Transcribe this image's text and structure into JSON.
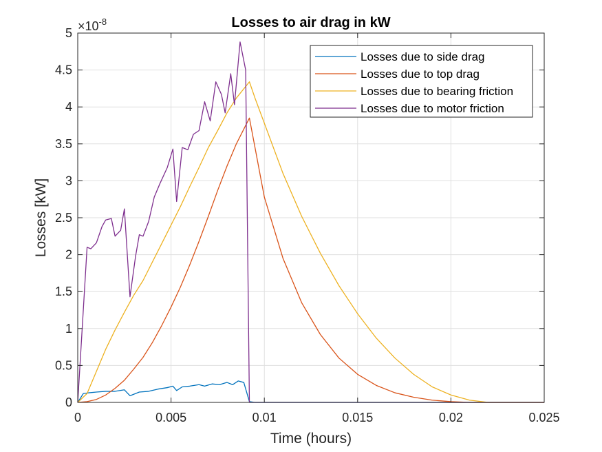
{
  "chart_data": {
    "type": "line",
    "title": "Losses to air drag in kW",
    "xlabel": "Time (hours)",
    "ylabel": "Losses [kW]",
    "y_exponent_label": "×10",
    "y_exponent_power": "-8",
    "xlim": [
      0,
      0.025
    ],
    "ylim": [
      0,
      5
    ],
    "x_ticks": [
      0,
      0.005,
      0.01,
      0.015,
      0.02,
      0.025
    ],
    "x_tick_labels": [
      "0",
      "0.005",
      "0.01",
      "0.015",
      "0.02",
      "0.025"
    ],
    "y_ticks": [
      0,
      0.5,
      1,
      1.5,
      2,
      2.5,
      3,
      3.5,
      4,
      4.5,
      5
    ],
    "y_tick_labels": [
      "0",
      "0.5",
      "1",
      "1.5",
      "2",
      "2.5",
      "3",
      "3.5",
      "4",
      "4.5",
      "5"
    ],
    "grid": true,
    "legend_position": "top-right",
    "series": [
      {
        "name": "Losses due to side drag",
        "color": "#0072BD",
        "points": [
          [
            0,
            0
          ],
          [
            0.0003,
            0.12
          ],
          [
            0.0006,
            0.13
          ],
          [
            0.001,
            0.14
          ],
          [
            0.0015,
            0.15
          ],
          [
            0.002,
            0.15
          ],
          [
            0.0025,
            0.17
          ],
          [
            0.0028,
            0.09
          ],
          [
            0.0033,
            0.14
          ],
          [
            0.0038,
            0.15
          ],
          [
            0.0043,
            0.18
          ],
          [
            0.0048,
            0.2
          ],
          [
            0.0051,
            0.22
          ],
          [
            0.0053,
            0.16
          ],
          [
            0.0056,
            0.21
          ],
          [
            0.006,
            0.22
          ],
          [
            0.0065,
            0.24
          ],
          [
            0.0068,
            0.22
          ],
          [
            0.0072,
            0.25
          ],
          [
            0.0076,
            0.24
          ],
          [
            0.008,
            0.27
          ],
          [
            0.0083,
            0.24
          ],
          [
            0.0086,
            0.29
          ],
          [
            0.0089,
            0.27
          ],
          [
            0.0092,
            0.01
          ],
          [
            0.0095,
            0
          ],
          [
            0.025,
            0
          ]
        ]
      },
      {
        "name": "Losses due to top drag",
        "color": "#D95319",
        "points": [
          [
            0,
            0
          ],
          [
            0.0005,
            0.01
          ],
          [
            0.001,
            0.04
          ],
          [
            0.0015,
            0.1
          ],
          [
            0.002,
            0.19
          ],
          [
            0.0025,
            0.3
          ],
          [
            0.003,
            0.45
          ],
          [
            0.0035,
            0.61
          ],
          [
            0.004,
            0.81
          ],
          [
            0.0045,
            1.04
          ],
          [
            0.005,
            1.29
          ],
          [
            0.0055,
            1.56
          ],
          [
            0.006,
            1.86
          ],
          [
            0.0065,
            2.18
          ],
          [
            0.007,
            2.52
          ],
          [
            0.0075,
            2.87
          ],
          [
            0.008,
            3.2
          ],
          [
            0.0085,
            3.5
          ],
          [
            0.0092,
            3.85
          ],
          [
            0.0095,
            3.45
          ],
          [
            0.01,
            2.78
          ],
          [
            0.011,
            1.95
          ],
          [
            0.012,
            1.35
          ],
          [
            0.013,
            0.92
          ],
          [
            0.014,
            0.6
          ],
          [
            0.015,
            0.38
          ],
          [
            0.016,
            0.23
          ],
          [
            0.017,
            0.13
          ],
          [
            0.018,
            0.07
          ],
          [
            0.019,
            0.03
          ],
          [
            0.02,
            0.01
          ],
          [
            0.021,
            0
          ],
          [
            0.025,
            0
          ]
        ]
      },
      {
        "name": "Losses due to bearing friction",
        "color": "#EDB120",
        "points": [
          [
            0,
            0
          ],
          [
            0.0005,
            0.12
          ],
          [
            0.001,
            0.42
          ],
          [
            0.0015,
            0.72
          ],
          [
            0.002,
            0.98
          ],
          [
            0.0025,
            1.22
          ],
          [
            0.003,
            1.45
          ],
          [
            0.0035,
            1.65
          ],
          [
            0.004,
            1.9
          ],
          [
            0.0045,
            2.15
          ],
          [
            0.005,
            2.4
          ],
          [
            0.0055,
            2.65
          ],
          [
            0.006,
            2.92
          ],
          [
            0.0065,
            3.18
          ],
          [
            0.007,
            3.45
          ],
          [
            0.0075,
            3.68
          ],
          [
            0.008,
            3.92
          ],
          [
            0.0085,
            4.12
          ],
          [
            0.0092,
            4.34
          ],
          [
            0.0095,
            4.12
          ],
          [
            0.01,
            3.78
          ],
          [
            0.011,
            3.1
          ],
          [
            0.012,
            2.52
          ],
          [
            0.013,
            2.02
          ],
          [
            0.014,
            1.58
          ],
          [
            0.015,
            1.2
          ],
          [
            0.016,
            0.87
          ],
          [
            0.017,
            0.6
          ],
          [
            0.018,
            0.38
          ],
          [
            0.019,
            0.21
          ],
          [
            0.02,
            0.1
          ],
          [
            0.021,
            0.03
          ],
          [
            0.022,
            0
          ],
          [
            0.025,
            0
          ]
        ]
      },
      {
        "name": "Losses due to motor friction",
        "color": "#7E2F8E",
        "points": [
          [
            0,
            0
          ],
          [
            0.0005,
            2.1
          ],
          [
            0.0007,
            2.08
          ],
          [
            0.001,
            2.16
          ],
          [
            0.0013,
            2.38
          ],
          [
            0.0015,
            2.47
          ],
          [
            0.0018,
            2.49
          ],
          [
            0.002,
            2.25
          ],
          [
            0.0023,
            2.33
          ],
          [
            0.0025,
            2.62
          ],
          [
            0.0028,
            1.43
          ],
          [
            0.0031,
            1.98
          ],
          [
            0.0033,
            2.27
          ],
          [
            0.0035,
            2.25
          ],
          [
            0.0038,
            2.45
          ],
          [
            0.0041,
            2.78
          ],
          [
            0.0044,
            2.96
          ],
          [
            0.0048,
            3.18
          ],
          [
            0.0051,
            3.43
          ],
          [
            0.0053,
            2.72
          ],
          [
            0.0056,
            3.45
          ],
          [
            0.0059,
            3.42
          ],
          [
            0.0062,
            3.63
          ],
          [
            0.0065,
            3.68
          ],
          [
            0.0068,
            4.07
          ],
          [
            0.0071,
            3.81
          ],
          [
            0.0074,
            4.34
          ],
          [
            0.0077,
            4.17
          ],
          [
            0.0079,
            3.92
          ],
          [
            0.0082,
            4.45
          ],
          [
            0.0084,
            4.03
          ],
          [
            0.0087,
            4.88
          ],
          [
            0.009,
            4.5
          ],
          [
            0.0092,
            0
          ],
          [
            0.025,
            0
          ]
        ]
      }
    ]
  }
}
